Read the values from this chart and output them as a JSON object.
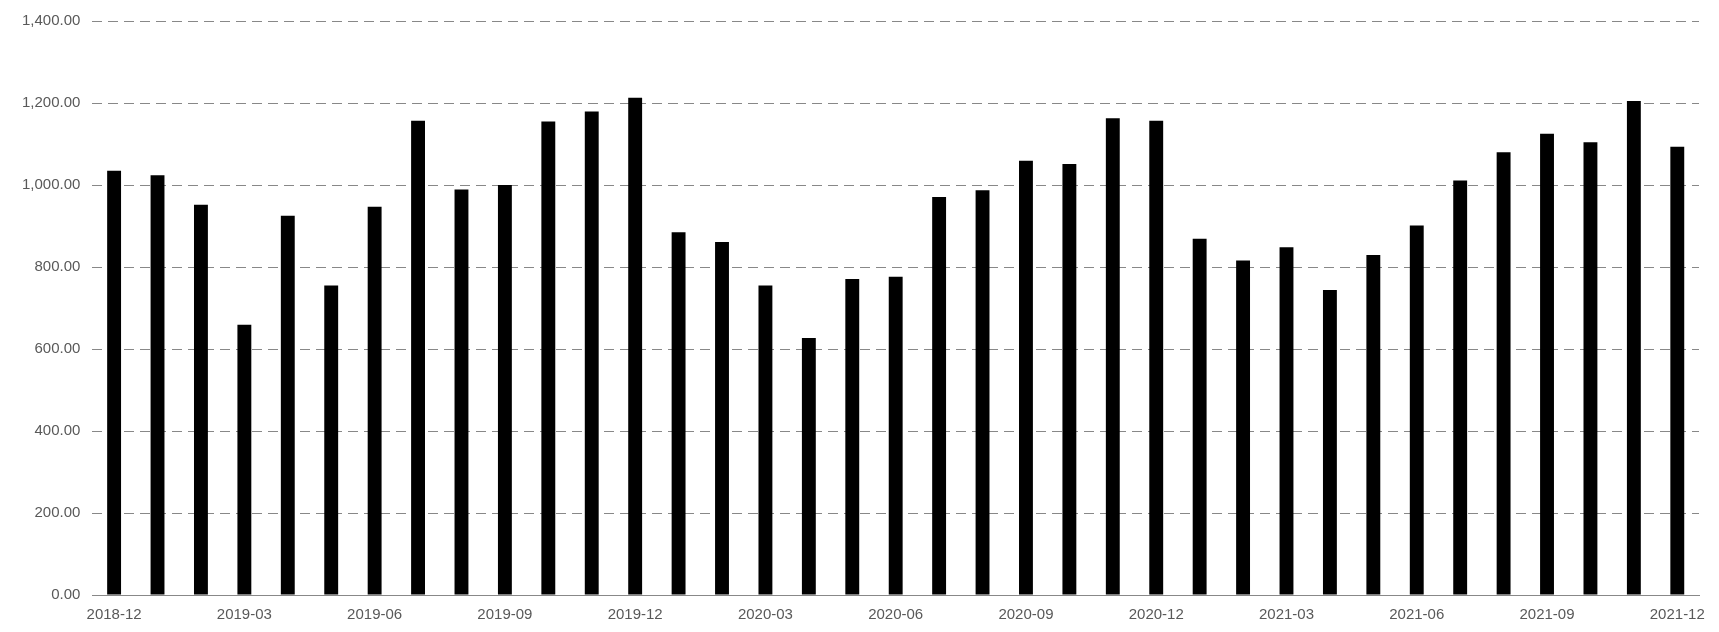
{
  "chart_data": {
    "type": "bar",
    "categories": [
      "2018-12",
      null,
      null,
      "2019-03",
      null,
      null,
      "2019-06",
      null,
      null,
      "2019-09",
      null,
      null,
      "2019-12",
      null,
      null,
      "2020-03",
      null,
      null,
      "2020-06",
      null,
      null,
      "2020-09",
      null,
      null,
      "2020-12",
      null,
      null,
      "2021-03",
      null,
      null,
      "2021-06",
      null,
      null,
      "2021-09",
      null,
      null,
      "2021-12"
    ],
    "values": [
      1035,
      1024,
      952,
      659,
      925,
      755,
      947,
      1157,
      989,
      1000,
      1155,
      1179,
      1213,
      885,
      861,
      755,
      627,
      771,
      776,
      971,
      987,
      1059,
      1051,
      1163,
      1157,
      869,
      816,
      848,
      744,
      829,
      901,
      1011,
      1080,
      1125,
      1104,
      1205,
      1093
    ],
    "color": "#000000",
    "ylim": [
      0,
      1400
    ],
    "yticks": [
      {
        "value": 0,
        "label": "0.00"
      },
      {
        "value": 200,
        "label": "200.00"
      },
      {
        "value": 400,
        "label": "400.00"
      },
      {
        "value": 600,
        "label": "600.00"
      },
      {
        "value": 800,
        "label": "800.00"
      },
      {
        "value": 1000,
        "label": "1,000.00"
      },
      {
        "value": 1200,
        "label": "1,200.00"
      },
      {
        "value": 1400,
        "label": "1,400.00"
      }
    ],
    "grid": "y",
    "line_style": "dashed",
    "legend": false
  }
}
